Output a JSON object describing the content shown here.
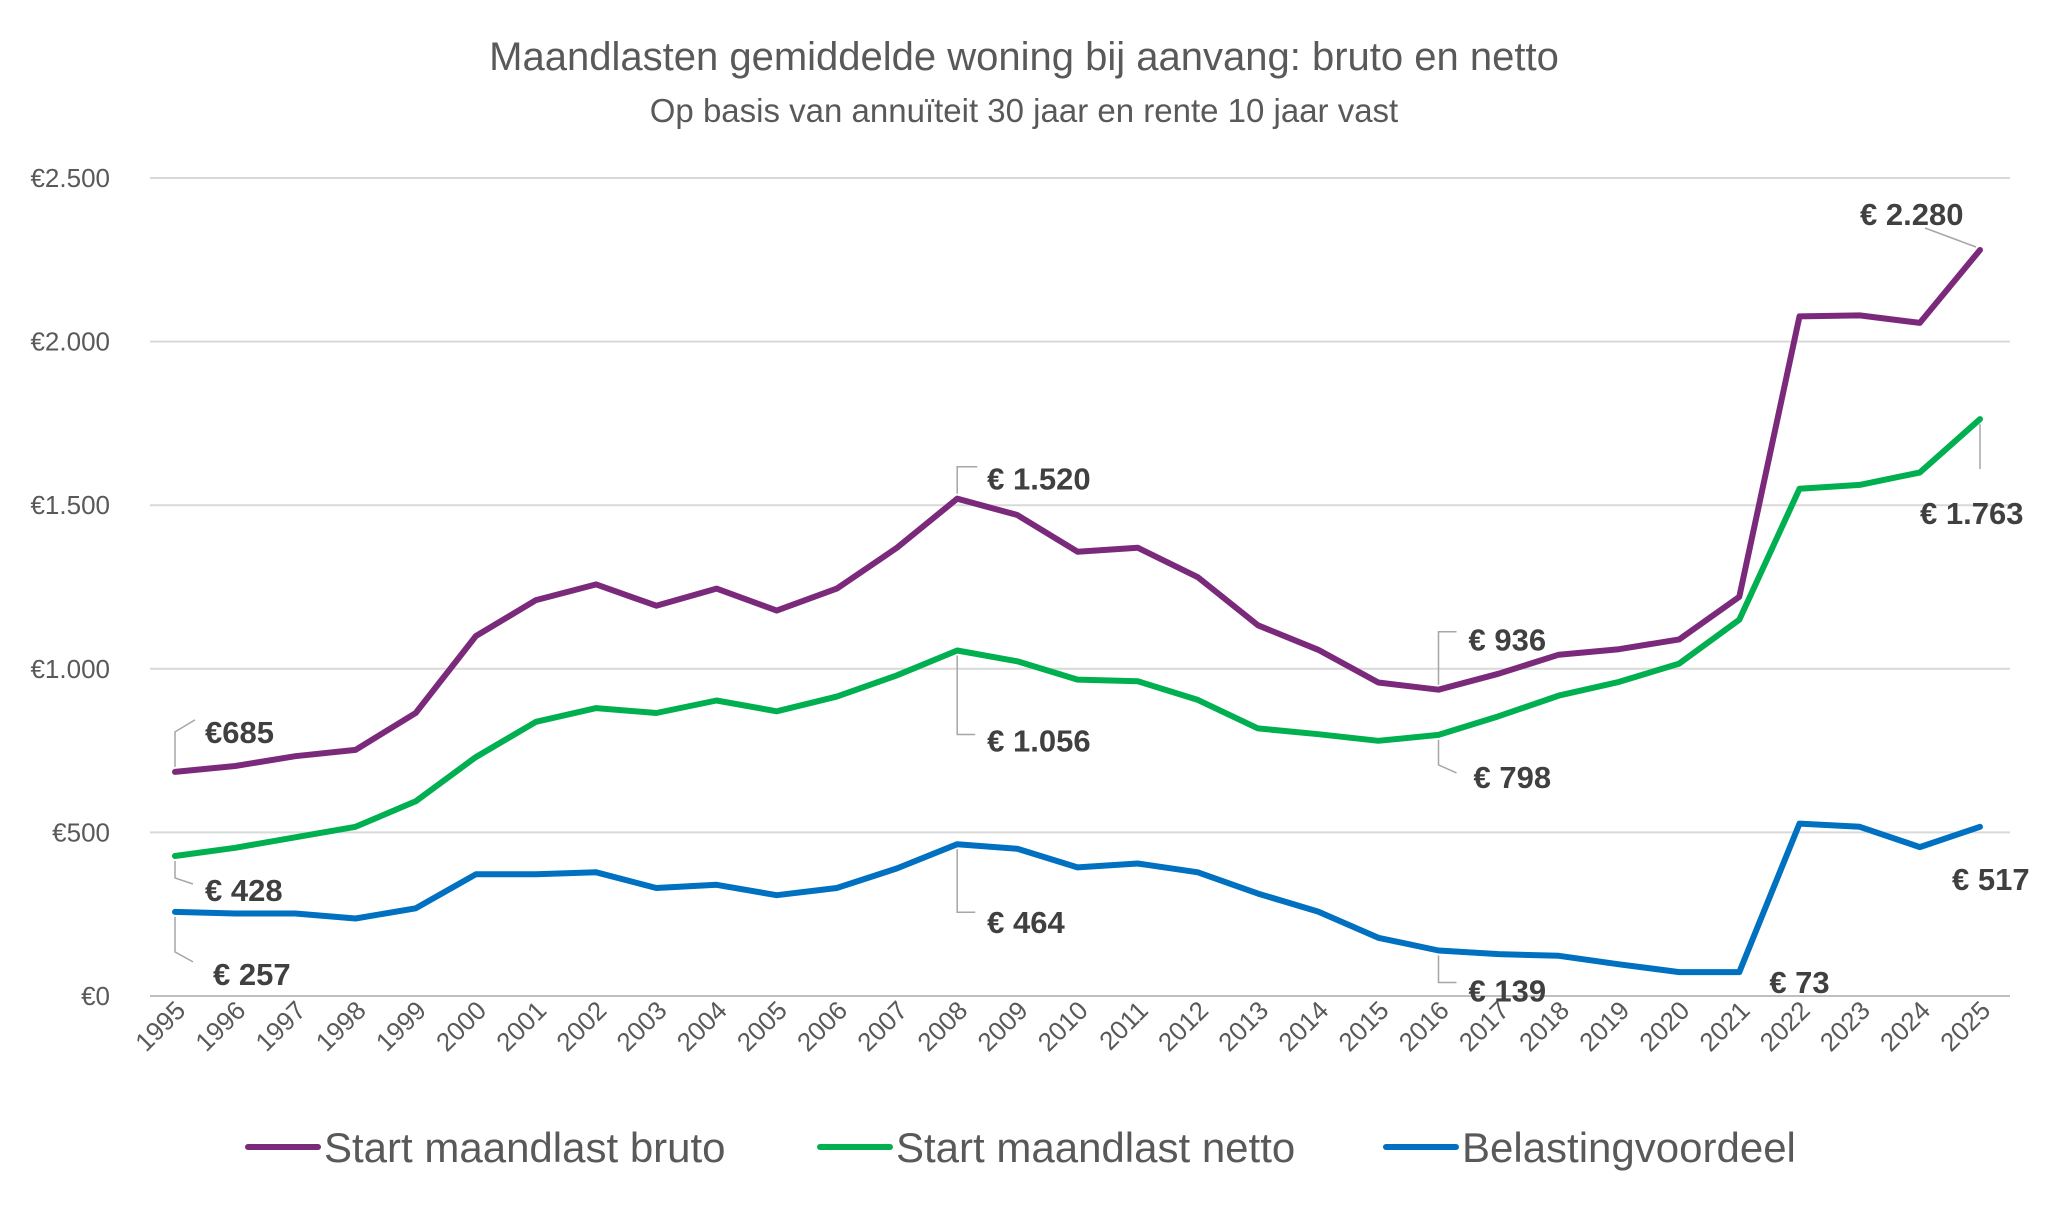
{
  "chart_data": {
    "type": "line",
    "title": "Maandlasten gemiddelde woning bij aanvang: bruto en netto",
    "subtitle": "Op basis van annuïteit 30 jaar en rente 10 jaar vast",
    "xlabel": "",
    "ylabel": "",
    "ylim": [
      0,
      2500
    ],
    "yticks": [
      0,
      500,
      1000,
      1500,
      2000,
      2500
    ],
    "ytick_labels": [
      "€0",
      "€500",
      "€1.000",
      "€1.500",
      "€2.000",
      "€2.500"
    ],
    "grid": true,
    "legend_position": "bottom",
    "categories": [
      "1995",
      "1996",
      "1997",
      "1998",
      "1999",
      "2000",
      "2001",
      "2002",
      "2003",
      "2004",
      "2005",
      "2006",
      "2007",
      "2008",
      "2009",
      "2010",
      "2011",
      "2012",
      "2013",
      "2014",
      "2015",
      "2016",
      "2017",
      "2018",
      "2019",
      "2020",
      "2021",
      "2022",
      "2023",
      "2024",
      "2025"
    ],
    "series": [
      {
        "name": "Start maandlast bruto",
        "color": "#7B2A7B",
        "values": [
          685,
          703,
          733,
          752,
          865,
          1100,
          1210,
          1258,
          1193,
          1245,
          1178,
          1245,
          1370,
          1520,
          1470,
          1358,
          1370,
          1280,
          1133,
          1058,
          958,
          936,
          985,
          1043,
          1060,
          1090,
          1220,
          2077,
          2080,
          2057,
          2280
        ],
        "labels": [
          {
            "index": 0,
            "text": "€685"
          },
          {
            "index": 13,
            "text": "€ 1.520"
          },
          {
            "index": 21,
            "text": "€ 936"
          },
          {
            "index": 30,
            "text": "€ 2.280"
          }
        ]
      },
      {
        "name": "Start maandlast netto",
        "color": "#00B050",
        "values": [
          428,
          453,
          485,
          517,
          595,
          730,
          838,
          880,
          865,
          903,
          870,
          915,
          980,
          1056,
          1023,
          967,
          962,
          905,
          818,
          800,
          780,
          798,
          855,
          918,
          960,
          1016,
          1150,
          1550,
          1562,
          1600,
          1763
        ],
        "labels": [
          {
            "index": 0,
            "text": "€ 428"
          },
          {
            "index": 13,
            "text": "€ 1.056"
          },
          {
            "index": 21,
            "text": "€ 798"
          },
          {
            "index": 30,
            "text": "€ 1.763"
          }
        ]
      },
      {
        "name": "Belastingvoordeel",
        "color": "#0070C0",
        "values": [
          257,
          252,
          252,
          237,
          268,
          372,
          372,
          378,
          330,
          340,
          308,
          330,
          390,
          464,
          450,
          393,
          405,
          378,
          313,
          258,
          178,
          139,
          128,
          123,
          97,
          73,
          73,
          527,
          517,
          455,
          517
        ],
        "labels": [
          {
            "index": 0,
            "text": "€ 257"
          },
          {
            "index": 13,
            "text": "€ 464"
          },
          {
            "index": 21,
            "text": "€ 139"
          },
          {
            "index": 26,
            "text": "€ 73"
          },
          {
            "index": 30,
            "text": "€ 517"
          }
        ]
      }
    ]
  }
}
